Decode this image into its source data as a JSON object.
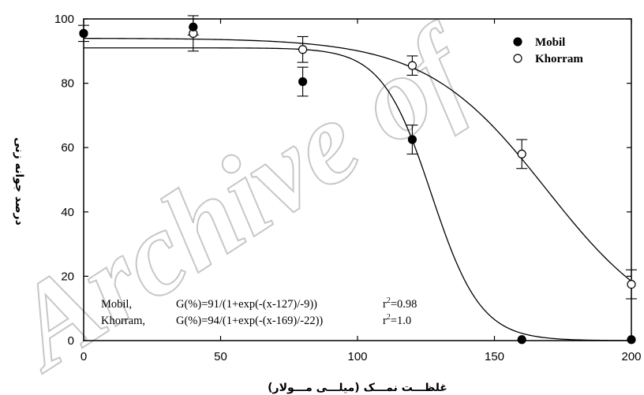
{
  "watermark": "Archive of",
  "chart_data": {
    "type": "scatter",
    "title": "",
    "xlabel": "غلظـــت نمـــک (میلـــی مـــولار)",
    "ylabel": "درصد جوانه زنی",
    "xlim": [
      0,
      200
    ],
    "ylim": [
      0,
      100
    ],
    "x_ticks": [
      "0",
      "50",
      "100",
      "150",
      "200"
    ],
    "y_ticks": [
      "0",
      "20",
      "40",
      "60",
      "80",
      "100"
    ],
    "grid": false,
    "legend_position": "top-right",
    "series": [
      {
        "name": "Mobil",
        "marker": "filled-circle",
        "x": [
          0,
          40,
          80,
          120,
          160,
          200
        ],
        "y": [
          95.5,
          97.5,
          80.5,
          62.5,
          0.3,
          0.3
        ],
        "error": [
          2.5,
          2.5,
          4.5,
          4.5,
          0,
          0
        ],
        "fit": {
          "a": 91,
          "x0": 127,
          "b": -9
        }
      },
      {
        "name": "Khorram",
        "marker": "open-circle",
        "x": [
          0,
          40,
          80,
          120,
          160,
          200
        ],
        "y": [
          95.5,
          95.5,
          90.5,
          85.5,
          58,
          17.5
        ],
        "error": [
          0,
          5.5,
          4,
          3,
          4.5,
          4.5
        ],
        "fit": {
          "a": 94,
          "x0": 169,
          "b": -22
        }
      }
    ],
    "annotations": [
      {
        "series": "Mobil,",
        "equation": "G(%)=91/(1+exp(-(x-127)/-9))",
        "r2_prefix": "r",
        "r2_sup": "2",
        "r2_value": "=0.98"
      },
      {
        "series": "Khorram,",
        "equation": "G(%)=94/(1+exp(-(x-169)/-22))",
        "r2_prefix": "r",
        "r2_sup": "2",
        "r2_value": "=1.0"
      }
    ]
  }
}
